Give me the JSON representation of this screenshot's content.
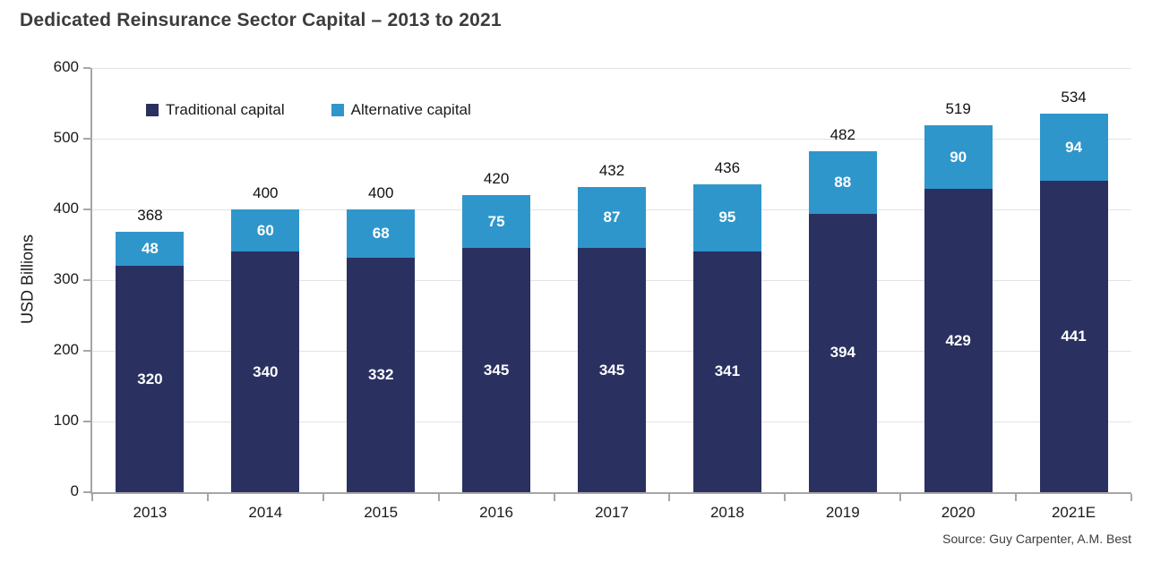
{
  "title": "Dedicated Reinsurance Sector Capital – 2013 to 2021",
  "source": "Source: Guy Carpenter, A.M. Best",
  "colors": {
    "traditional": "#2A3161",
    "alternative": "#2F96CB",
    "gridline": "#e3e3e3",
    "axis": "#a6a6a6",
    "title_text": "#3c3c3c",
    "bar_label_text": "#ffffff",
    "total_label_text": "#111111"
  },
  "chart_data": {
    "type": "bar",
    "stacked": true,
    "title": "Dedicated Reinsurance Sector Capital – 2013 to 2021",
    "categories": [
      "2013",
      "2014",
      "2015",
      "2016",
      "2017",
      "2018",
      "2019",
      "2020",
      "2021E"
    ],
    "series": [
      {
        "name": "Traditional capital",
        "color": "#2A3161",
        "values": [
          320,
          340,
          332,
          345,
          345,
          341,
          394,
          429,
          441
        ]
      },
      {
        "name": "Alternative capital",
        "color": "#2F96CB",
        "values": [
          48,
          60,
          68,
          75,
          87,
          95,
          88,
          90,
          94
        ]
      }
    ],
    "totals": [
      368,
      400,
      400,
      420,
      432,
      436,
      482,
      519,
      534
    ],
    "xlabel": "",
    "ylabel": "USD Billions",
    "ylim": [
      0,
      600
    ],
    "yticks": [
      0,
      100,
      200,
      300,
      400,
      500,
      600
    ],
    "grid": true,
    "legend_position": "top-left-inside"
  }
}
